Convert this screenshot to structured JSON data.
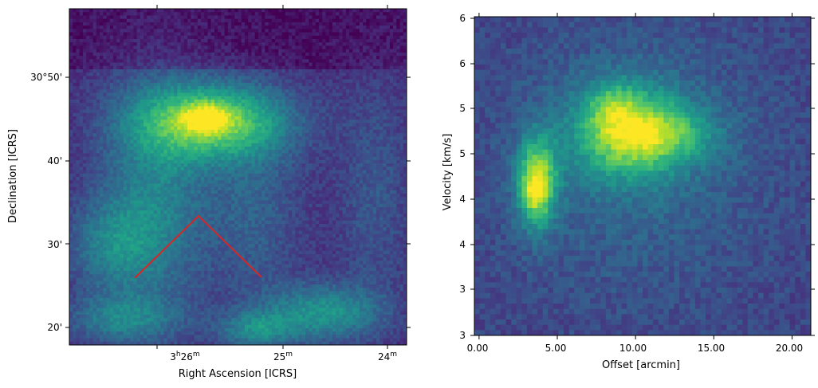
{
  "chart_data": [
    {
      "type": "heatmap",
      "title": "",
      "xlabel": "Right Ascension [ICRS]",
      "ylabel": "Declination [ICRS]",
      "colormap": "viridis",
      "x_ticks": [
        {
          "value": "3h26m",
          "main": "3",
          "sup1": "h",
          "mid": "26",
          "sup2": "m"
        },
        {
          "value": "25m",
          "main": "25",
          "sup1": "m",
          "mid": "",
          "sup2": ""
        },
        {
          "value": "24m",
          "main": "24",
          "sup1": "m",
          "mid": "",
          "sup2": ""
        }
      ],
      "y_ticks": [
        "30°50'",
        "40'",
        "30'",
        "20'"
      ],
      "path_color": "#d62728",
      "path_description": "Extraction path for position-velocity slice (inverted V)",
      "bright_regions": [
        {
          "label": "northern ridge peak",
          "intensity": 1.0
        },
        {
          "label": "southeast filament",
          "intensity": 0.75
        },
        {
          "label": "west filament",
          "intensity": 0.65
        },
        {
          "label": "southwest clump",
          "intensity": 0.6
        },
        {
          "label": "south-center clump",
          "intensity": 0.7
        }
      ]
    },
    {
      "type": "heatmap",
      "title": "",
      "xlabel": "Offset [arcmin]",
      "ylabel": "Velocity [km/s]",
      "colormap": "viridis",
      "x_ticks": [
        "0.00",
        "5.00",
        "10.00",
        "15.00",
        "20.00"
      ],
      "x_tick_values": [
        0,
        5,
        10,
        15,
        20
      ],
      "xlim": [
        -0.3,
        21.2
      ],
      "y_ticks": [
        "3",
        "3",
        "4",
        "4",
        "5",
        "5",
        "6",
        "6"
      ],
      "grid": false,
      "bright_regions": [
        {
          "label": "compact clump",
          "offset_arcmin": 3.6,
          "velocity_frac": 0.45,
          "intensity": 0.85
        },
        {
          "label": "extended component",
          "offset_arcmin": 10.0,
          "velocity_frac": 0.64,
          "intensity": 0.95
        }
      ]
    }
  ]
}
